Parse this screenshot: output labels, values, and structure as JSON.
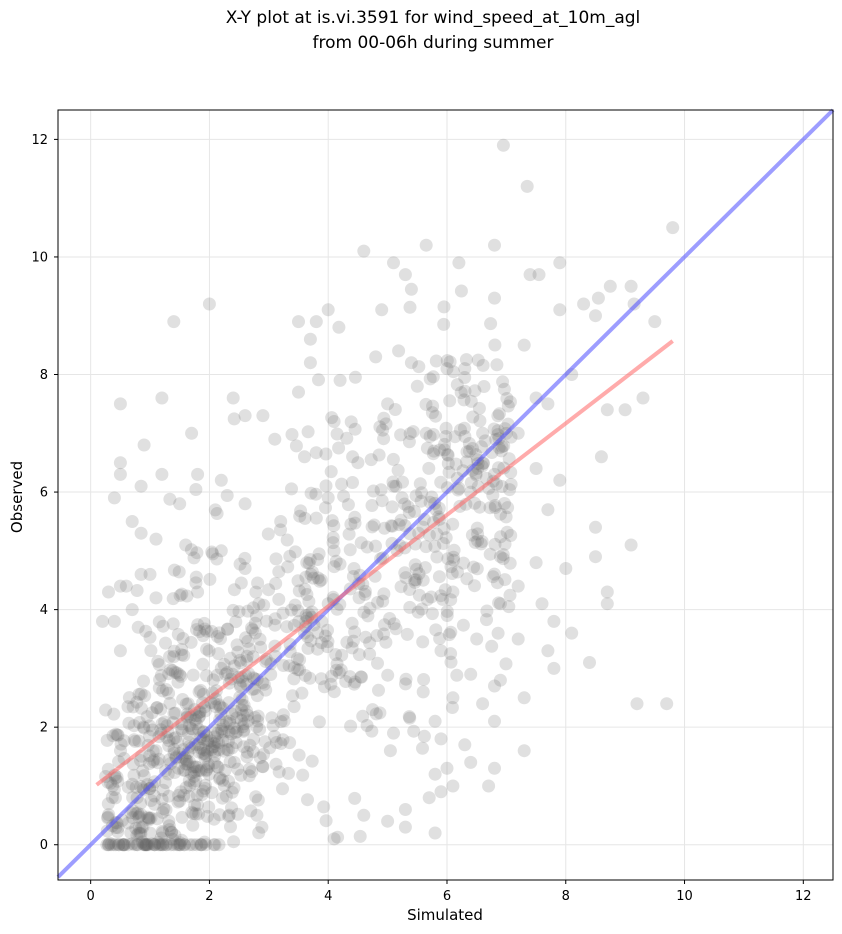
{
  "title_line1": "X-Y plot at is.vi.3591 for wind_speed_at_10m_agl",
  "title_line2": "from 00-06h during summer",
  "colors": {
    "points": "#666666",
    "identity_line": "#4d4dff",
    "fit_line": "#ff6666",
    "grid": "#e6e6e6"
  },
  "chart_data": {
    "type": "scatter",
    "xlabel": "Simulated",
    "ylabel": "Observed",
    "xlim": [
      -0.55,
      12.5
    ],
    "ylim": [
      -0.6,
      12.5
    ],
    "xticks": [
      0,
      2,
      4,
      6,
      8,
      10,
      12
    ],
    "yticks": [
      0,
      2,
      4,
      6,
      8,
      10,
      12
    ],
    "grid": true,
    "series": [
      {
        "kind": "points",
        "points": [
          [
            6.95,
            11.9
          ],
          [
            7.35,
            11.2
          ],
          [
            9.8,
            10.5
          ],
          [
            5.65,
            10.2
          ],
          [
            6.8,
            10.2
          ],
          [
            4.6,
            10.1
          ],
          [
            6.2,
            9.9
          ],
          [
            7.9,
            9.9
          ],
          [
            5.1,
            9.9
          ],
          [
            7.4,
            9.7
          ],
          [
            5.3,
            9.7
          ],
          [
            7.55,
            9.7
          ],
          [
            9.1,
            9.5
          ],
          [
            8.75,
            9.5
          ],
          [
            5.4,
            9.45
          ],
          [
            2.0,
            9.2
          ],
          [
            9.15,
            9.2
          ],
          [
            8.3,
            9.2
          ],
          [
            6.8,
            9.3
          ],
          [
            8.55,
            9.3
          ],
          [
            4.0,
            9.1
          ],
          [
            4.9,
            9.1
          ],
          [
            5.95,
            9.15
          ],
          [
            1.4,
            8.9
          ],
          [
            3.5,
            8.9
          ],
          [
            3.8,
            8.9
          ],
          [
            9.5,
            8.9
          ],
          [
            8.5,
            9.0
          ],
          [
            7.9,
            9.1
          ],
          [
            3.7,
            8.6
          ],
          [
            7.3,
            8.5
          ],
          [
            4.8,
            8.3
          ],
          [
            6.3,
            8.1
          ],
          [
            5.4,
            8.2
          ],
          [
            8.1,
            8.0
          ],
          [
            3.7,
            8.2
          ],
          [
            9.3,
            7.6
          ],
          [
            4.2,
            7.9
          ],
          [
            7.5,
            7.6
          ],
          [
            8.7,
            7.4
          ],
          [
            6.0,
            8.1
          ],
          [
            5.5,
            7.8
          ],
          [
            1.2,
            7.6
          ],
          [
            2.4,
            7.6
          ],
          [
            0.5,
            7.5
          ],
          [
            7.7,
            7.5
          ],
          [
            3.5,
            7.7
          ],
          [
            2.6,
            7.3
          ],
          [
            9.0,
            7.4
          ],
          [
            5.0,
            7.5
          ],
          [
            2.9,
            7.3
          ],
          [
            4.1,
            7.2
          ],
          [
            1.7,
            7.0
          ],
          [
            6.6,
            7.0
          ],
          [
            7.2,
            7.0
          ],
          [
            5.65,
            7.0
          ],
          [
            3.1,
            6.9
          ],
          [
            0.9,
            6.8
          ],
          [
            8.6,
            6.6
          ],
          [
            3.6,
            6.6
          ],
          [
            4.5,
            6.5
          ],
          [
            0.5,
            6.5
          ],
          [
            6.8,
            6.3
          ],
          [
            7.5,
            6.4
          ],
          [
            1.2,
            6.3
          ],
          [
            1.8,
            6.3
          ],
          [
            7.9,
            6.2
          ],
          [
            2.2,
            6.2
          ],
          [
            5.1,
            6.1
          ],
          [
            0.5,
            6.3
          ],
          [
            0.85,
            6.1
          ],
          [
            6.4,
            6.0
          ],
          [
            4.0,
            5.9
          ],
          [
            0.4,
            5.9
          ],
          [
            1.5,
            5.8
          ],
          [
            2.6,
            5.8
          ],
          [
            7.7,
            5.7
          ],
          [
            3.2,
            5.5
          ],
          [
            0.7,
            5.5
          ],
          [
            8.5,
            5.4
          ],
          [
            0.85,
            5.3
          ],
          [
            1.1,
            5.2
          ],
          [
            1.6,
            5.1
          ],
          [
            9.1,
            5.1
          ],
          [
            2.2,
            5.0
          ],
          [
            4.1,
            5.0
          ],
          [
            6.9,
            4.9
          ],
          [
            8.5,
            4.9
          ],
          [
            1.0,
            4.6
          ],
          [
            0.85,
            4.6
          ],
          [
            7.5,
            4.8
          ],
          [
            8.0,
            4.7
          ],
          [
            2.6,
            4.7
          ],
          [
            0.5,
            4.4
          ],
          [
            0.6,
            4.4
          ],
          [
            5.6,
            4.5
          ],
          [
            7.2,
            4.4
          ],
          [
            0.3,
            4.3
          ],
          [
            1.1,
            4.2
          ],
          [
            1.8,
            4.3
          ],
          [
            6.1,
            4.3
          ],
          [
            6.9,
            4.1
          ],
          [
            7.6,
            4.1
          ],
          [
            8.7,
            4.1
          ],
          [
            8.7,
            4.3
          ],
          [
            4.0,
            4.1
          ],
          [
            0.7,
            4.0
          ],
          [
            7.8,
            3.8
          ],
          [
            0.2,
            3.8
          ],
          [
            0.4,
            3.8
          ],
          [
            8.1,
            3.6
          ],
          [
            3.6,
            3.6
          ],
          [
            0.8,
            3.7
          ],
          [
            7.2,
            3.5
          ],
          [
            6.5,
            3.5
          ],
          [
            5.9,
            3.3
          ],
          [
            7.7,
            3.3
          ],
          [
            8.4,
            3.1
          ],
          [
            7.8,
            3.0
          ],
          [
            0.5,
            3.3
          ],
          [
            1.4,
            3.2
          ],
          [
            2.2,
            3.0
          ],
          [
            6.4,
            2.9
          ],
          [
            6.9,
            2.8
          ],
          [
            6.8,
            2.7
          ],
          [
            7.3,
            2.5
          ],
          [
            5.6,
            2.6
          ],
          [
            6.1,
            2.5
          ],
          [
            9.2,
            2.4
          ],
          [
            9.7,
            2.4
          ],
          [
            6.6,
            2.4
          ],
          [
            6.8,
            2.1
          ],
          [
            5.8,
            2.1
          ],
          [
            7.3,
            1.6
          ],
          [
            5.1,
            1.9
          ],
          [
            6.3,
            1.7
          ],
          [
            5.9,
            1.8
          ],
          [
            6.4,
            1.4
          ],
          [
            6.0,
            1.3
          ],
          [
            6.8,
            1.3
          ],
          [
            5.8,
            1.2
          ],
          [
            6.1,
            1.0
          ],
          [
            6.7,
            1.0
          ],
          [
            5.9,
            0.9
          ],
          [
            5.7,
            0.8
          ],
          [
            5.3,
            0.6
          ],
          [
            4.1,
            0.1
          ],
          [
            5.8,
            0.2
          ],
          [
            5.3,
            0.3
          ],
          [
            4.6,
            0.5
          ],
          [
            5.0,
            0.4
          ],
          [
            2.8,
            0.5
          ]
        ]
      },
      {
        "kind": "cluster",
        "count": 1050,
        "seed": 3591
      }
    ],
    "lines": [
      {
        "kind": "identity",
        "from": [
          -0.55,
          -0.55
        ],
        "to": [
          12.5,
          12.5
        ]
      },
      {
        "kind": "fit",
        "from": [
          0.1,
          1.02
        ],
        "to": [
          9.8,
          8.57
        ]
      }
    ]
  }
}
